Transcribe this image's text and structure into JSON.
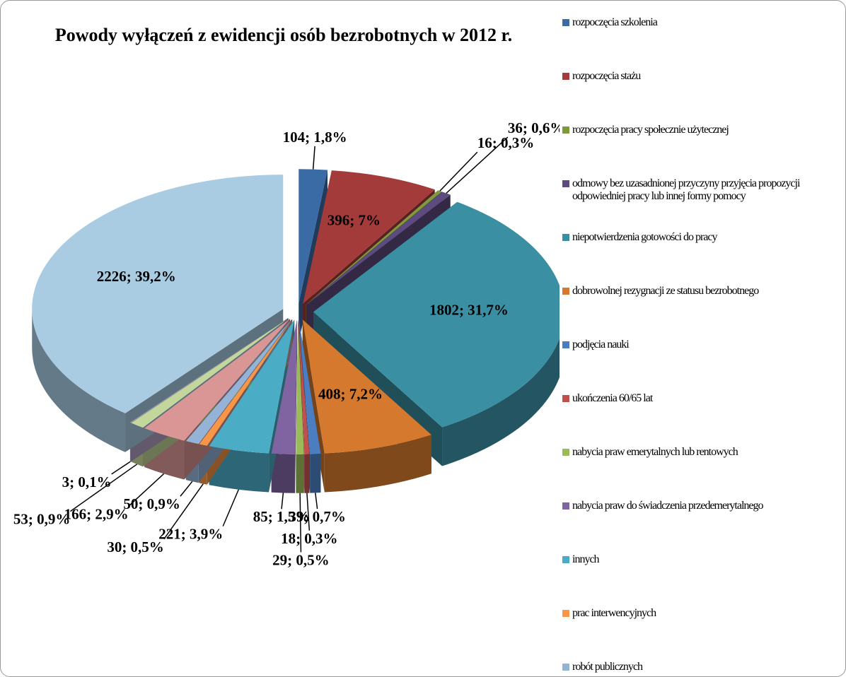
{
  "chart_data": {
    "type": "pie",
    "title": "Powody wyłączeń z ewidencji osób bezrobotnych w 2012 r.",
    "categories": [
      "rozpoczęcia szkolenia",
      "rozpoczęcia stażu",
      "rozpoczęcia pracy społecznie użytecznej",
      "odmowy bez uzasadnionej przyczyny przyjęcia propozycji odpowiedniej pracy lub innej formy pomocy",
      "niepotwierdzenia gotowości do pracy",
      "dobrowolnej rezygnacji ze statusu bezrobotnego",
      "podjęcia nauki",
      "ukończenia 60/65 lat",
      "nabycia praw emerytalnych lub rentowych",
      "nabycia praw do świadczenia przedemerytalnego",
      "innych",
      "prac interwencyjnych",
      "robót publicznych",
      null,
      null,
      null,
      null
    ],
    "values": [
      104,
      396,
      16,
      36,
      1802,
      408,
      39,
      18,
      29,
      85,
      221,
      30,
      50,
      166,
      53,
      3,
      2226
    ],
    "value_labels": [
      "104; 1,8%",
      "396; 7%",
      "16; 0,3%",
      "36; 0,6%",
      "1802; 31,7%",
      "408; 7,2%",
      "39; 0,7%",
      "18; 0,3%",
      "29; 0,5%",
      "85; 1,5%",
      "221; 3,9%",
      "30; 0,5%",
      "50; 0,9%",
      "166; 2,9%",
      "53; 0,9%",
      "3; 0,1%",
      "2226; 39,2%"
    ],
    "colors": [
      "#3a6ba5",
      "#a33b3b",
      "#7e9a3c",
      "#5d4a7e",
      "#3a8fa3",
      "#d4792e",
      "#4a7ec0",
      "#c0504d",
      "#9bbb59",
      "#8064a2",
      "#4bacc6",
      "#f79646",
      "#95b3d7",
      "#d99694",
      "#c3d69b",
      "#b3a2c7",
      "#a9cce3"
    ],
    "legend": "right"
  }
}
